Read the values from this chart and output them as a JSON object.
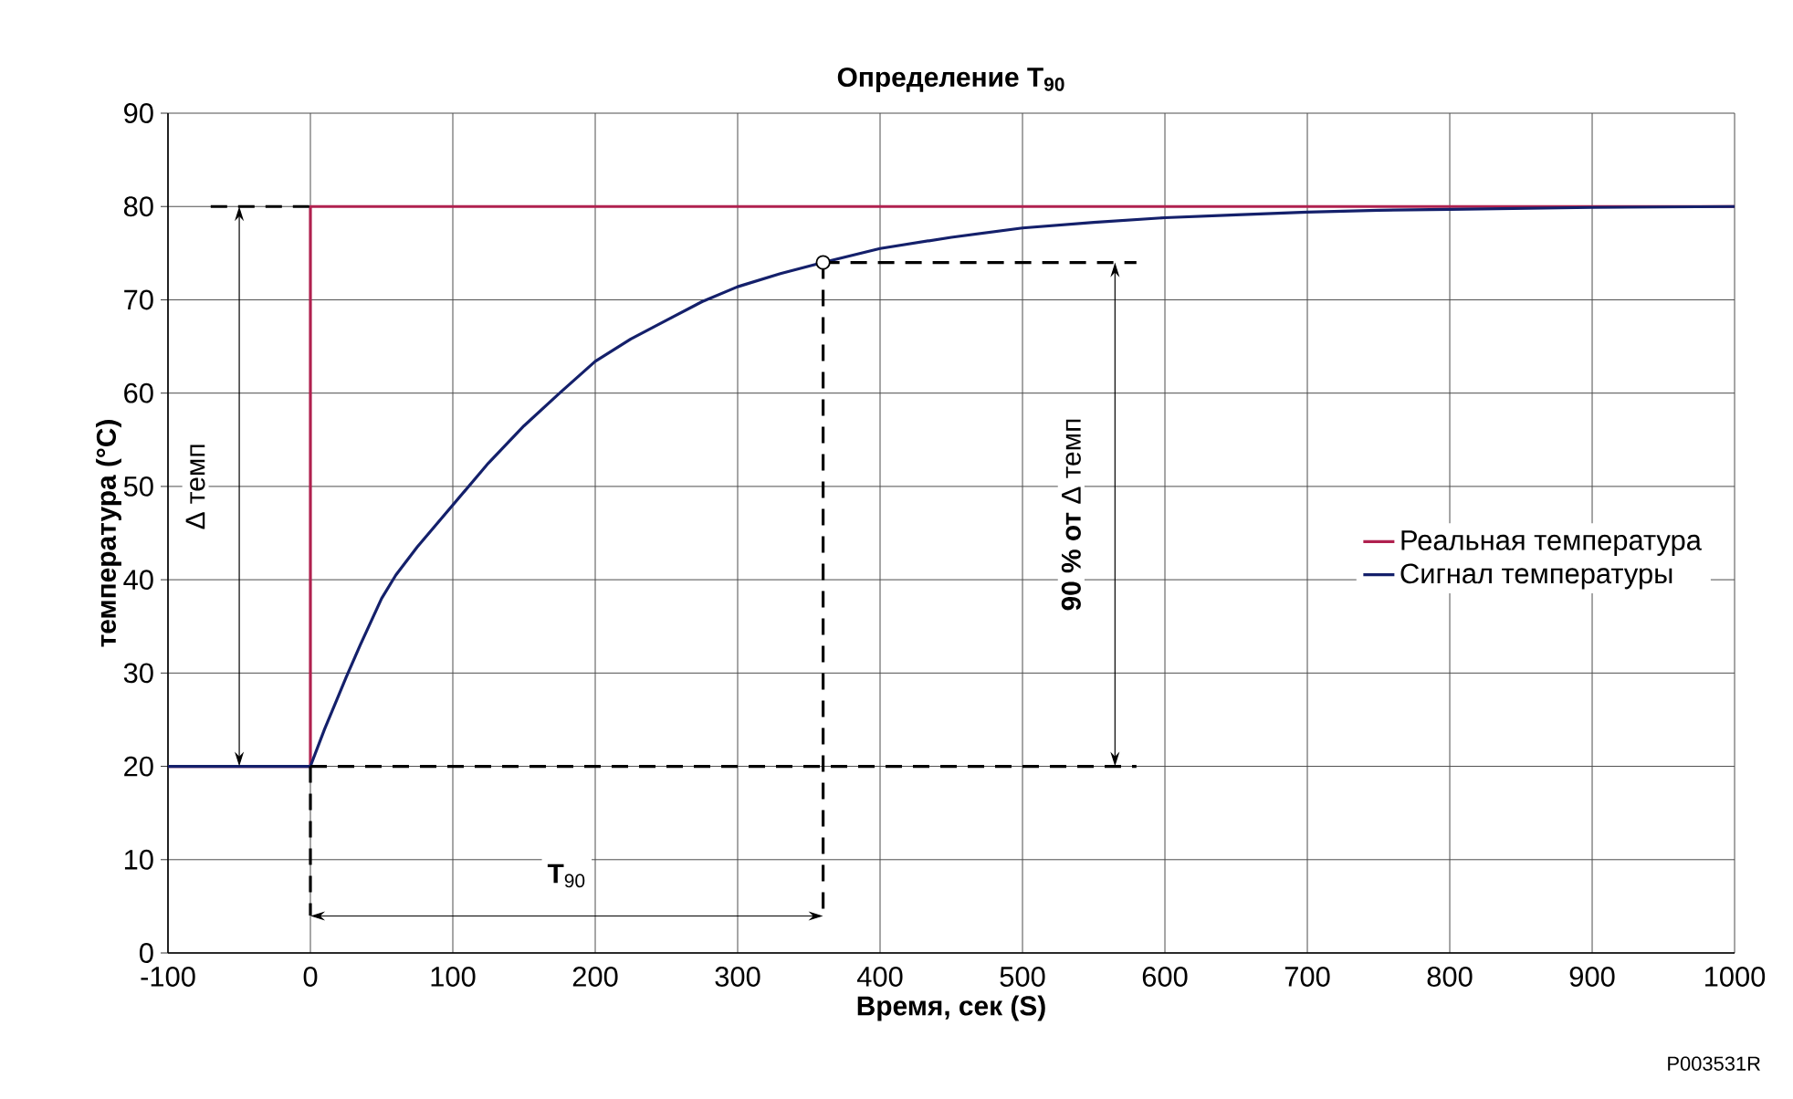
{
  "chart_data": {
    "type": "line",
    "title": "Определение T$_{90}$",
    "xlabel": "Время, сек (S)",
    "ylabel": "температура (°C)",
    "xlim": [
      -100,
      1000
    ],
    "xticks": [
      -100,
      0,
      100,
      200,
      300,
      400,
      500,
      600,
      700,
      800,
      900,
      1000
    ],
    "ylim": [
      0,
      90
    ],
    "yticks": [
      0,
      10,
      20,
      30,
      40,
      50,
      60,
      70,
      80,
      90
    ],
    "grid": true,
    "legend": "right",
    "series": [
      {
        "name": "Реальная температура",
        "color": "#b0214f",
        "x": [
          -100,
          0,
          0,
          1000
        ],
        "values": [
          20,
          20,
          80,
          80
        ]
      },
      {
        "name": "Сигнал температуры",
        "color": "#14206b",
        "x": [
          -100,
          0,
          10,
          25,
          35,
          50,
          60,
          75,
          100,
          125,
          150,
          175,
          200,
          225,
          250,
          275,
          300,
          330,
          360,
          400,
          450,
          500,
          550,
          600,
          650,
          700,
          750,
          800,
          900,
          1000
        ],
        "values": [
          20,
          20,
          24,
          29.5,
          33,
          38,
          40.5,
          43.5,
          48,
          52.5,
          56.5,
          60,
          63.4,
          65.8,
          67.8,
          69.8,
          71.4,
          72.8,
          74,
          75.5,
          76.7,
          77.7,
          78.3,
          78.8,
          79.1,
          79.4,
          79.6,
          79.7,
          79.9,
          80
        ]
      },
      {
        "color": "#000000",
        "line_style": "dashed",
        "x": [
          -70,
          0
        ],
        "values": [
          80,
          80
        ]
      },
      {
        "color": "#000000",
        "line_style": "dashed",
        "x": [
          0,
          580
        ],
        "values": [
          20,
          20
        ]
      },
      {
        "color": "#000000",
        "line_style": "dashed",
        "x": [
          360,
          580
        ],
        "values": [
          74,
          74
        ]
      },
      {
        "color": "#000000",
        "line_style": "dashed",
        "x": [
          360,
          360
        ],
        "values": [
          74,
          4
        ]
      },
      {
        "color": "#000000",
        "line_style": "dashed",
        "x": [
          0,
          0
        ],
        "values": [
          20,
          4
        ]
      },
      {
        "type": "scatter",
        "marker": "circle",
        "color": "#000000",
        "x": [
          360
        ],
        "values": [
          74
        ]
      }
    ],
    "annotations": [
      "Δ темп",
      "**90 % от** Δ темп",
      "**T**$_{90}$",
      "P003531R"
    ]
  }
}
